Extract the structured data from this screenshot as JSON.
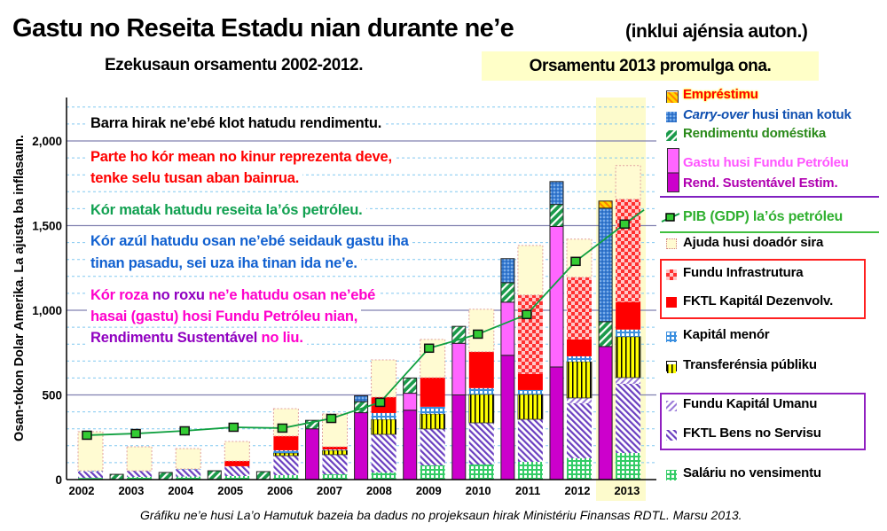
{
  "header": {
    "title": "Gastu no Reseita Estadu nian durante ne’e",
    "title_note": "(inklui ajénsia auton.)",
    "subtitle": "Ezekusaun orsamentu 2002-2012.",
    "subtitle_highlight": "Orsamentu 2013 promulga ona."
  },
  "annotations": {
    "bars": "Barra hirak ne’ebé klot hatudu rendimentu.",
    "red_1": "Parte ho kór mean no kinur reprezenta deve,",
    "red_2": "tenke selu tusan aban bainrua.",
    "green": "Kór matak hatudu reseita la’ós petróleu.",
    "blue_1": "Kór azúl hatudu osan ne’ebé seidauk gastu iha",
    "blue_2": "tinan pasadu, sei uza iha tinan ida ne’e.",
    "pink_1a": "Kór roza",
    "pink_1b": " no roxu",
    "pink_1c": " ne’e hatudu osan ne’ebé",
    "pink_2": "hasai (gastu) hosi Fundu Petróleu nian,",
    "pink_3a": "Rendimentu Sustentável",
    "pink_3b": " no liu."
  },
  "footnote": "Gráfiku ne’e husi La’o Hamutuk bazeia ba dadus no projeksaun hirak Ministériu Finansas RDTL. Marsu 2013.",
  "legend": {
    "emprestimu": "Empréstimu",
    "carry_over_a": "Carry-over",
    "carry_over_b": " husi tinan kotuk",
    "domestic": "Rendimentu doméstika",
    "gastu_fundu": "Gastu husi Fundu Petróleu",
    "rend_sustentavel": "Rend. Sustentável Estim.",
    "gdp": "PIB (GDP) la’ós petróleu",
    "ajuda": "Ajuda husi doadór sira",
    "infra": "Fundu Infrastrutura",
    "fktl_kapital": "FKTL Kapitál Dezenvolv.",
    "kapital_menor": "Kapitál menór",
    "transferensia": "Transferénsia públiku",
    "umanu": "Fundu Kapitál Umanu",
    "bens": "FKTL Bens no Servisu",
    "salariu": "Saláriu no vensimentu"
  },
  "chart_data": {
    "type": "bar",
    "stacked": true,
    "title": "Gastu no Reseita Estadu nian durante ne’e",
    "ylabel": "Osan-tokon Dolar Amerika.   La ajusta ba inflasaun.",
    "ylim": [
      0,
      2250
    ],
    "yticks": [
      "0",
      "500",
      "1,000",
      "1,500",
      "2,000"
    ],
    "ytick_values": [
      0,
      500,
      1000,
      1500,
      2000
    ],
    "grid": true,
    "legend_position": "right",
    "highlight_category": "2013",
    "categories": [
      "2002",
      "2003",
      "2004",
      "2005",
      "2006",
      "2007",
      "2008",
      "2009",
      "2010",
      "2011",
      "2012",
      "2013"
    ],
    "revenue_series": [
      {
        "key": "rend_sustentavel",
        "name": "Rend. Sustentável Estim.",
        "color": "#cc00cc",
        "values": [
          0,
          0,
          0,
          0,
          0,
          300,
          395,
          410,
          500,
          734,
          665,
          786
        ]
      },
      {
        "key": "gastu_fundu",
        "name": "Gastu husi Fundu Petróleu",
        "color": "#ff66ff",
        "values": [
          0,
          0,
          0,
          0,
          0,
          0,
          0,
          100,
          305,
          314,
          830,
          0
        ]
      },
      {
        "key": "domestic",
        "name": "Rendimentu doméstika",
        "color": "#1a9a4a",
        "values": [
          0,
          31,
          42,
          52,
          47,
          50,
          65,
          90,
          100,
          115,
          130,
          147
        ]
      },
      {
        "key": "carry_over",
        "name": "Carry-over husi tinan kotuk",
        "color": "#3a7fd5",
        "values": [
          0,
          0,
          0,
          0,
          0,
          0,
          35,
          0,
          0,
          142,
          135,
          670
        ]
      },
      {
        "key": "emprestimu",
        "name": "Empréstimu",
        "color": "#ffa500",
        "values": [
          0,
          0,
          0,
          0,
          0,
          0,
          0,
          0,
          0,
          0,
          0,
          42
        ]
      }
    ],
    "expenditure_series": [
      {
        "key": "salariu",
        "name": "Saláriu no vensimentu",
        "color": "#33cc66",
        "values": [
          10,
          16,
          18,
          21,
          26,
          31,
          42,
          84,
          89,
          105,
          126,
          157
        ]
      },
      {
        "key": "bens",
        "name": "FKTL Bens no Servisu",
        "color": "#7a4fc8",
        "values": [
          37,
          36,
          42,
          58,
          115,
          116,
          225,
          215,
          246,
          251,
          325,
          409
        ]
      },
      {
        "key": "umanu",
        "name": "Fundu Kapitál Umanu",
        "color": "#9a7ad8",
        "values": [
          0,
          0,
          0,
          0,
          0,
          0,
          0,
          0,
          0,
          0,
          31,
          36
        ]
      },
      {
        "key": "transferensia",
        "name": "Transferénsia públiku",
        "color": "#ffff00",
        "values": [
          0,
          0,
          0,
          0,
          16,
          26,
          89,
          89,
          168,
          147,
          215,
          242
        ]
      },
      {
        "key": "kapital_menor",
        "name": "Kapitál menór",
        "color": "#3a8fe0",
        "values": [
          5,
          0,
          3,
          0,
          16,
          5,
          37,
          42,
          37,
          26,
          31,
          42
        ]
      },
      {
        "key": "fktl_kapital",
        "name": "FKTL Kapitál Dezenvolv.",
        "color": "#ff0000",
        "values": [
          0,
          0,
          0,
          31,
          84,
          16,
          94,
          172,
          215,
          95,
          100,
          162
        ]
      },
      {
        "key": "infra",
        "name": "Fundu Infrastrutura",
        "color": "#ff3030",
        "values": [
          0,
          0,
          0,
          0,
          0,
          0,
          0,
          0,
          0,
          466,
          367,
          608
        ]
      },
      {
        "key": "ajuda",
        "name": "Ajuda husi doadór sira",
        "color": "#fffbd2",
        "values": [
          231,
          142,
          120,
          115,
          162,
          194,
          220,
          226,
          251,
          293,
          225,
          199
        ]
      }
    ],
    "line_series": {
      "key": "gdp",
      "name": "PIB (GDP) la’ós petróleu",
      "color": "#10a040",
      "values": [
        262,
        272,
        288,
        309,
        304,
        361,
        456,
        776,
        859,
        975,
        1289,
        1509
      ]
    }
  }
}
